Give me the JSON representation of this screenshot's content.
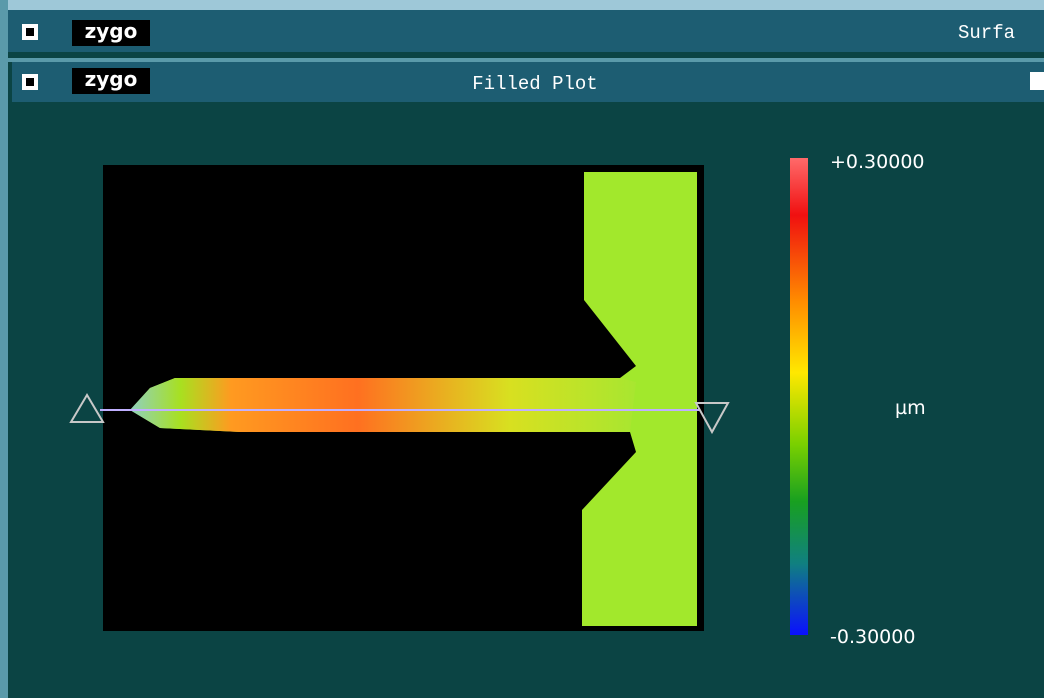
{
  "outer_window": {
    "logo": "zygo",
    "title": "Surfa"
  },
  "inner_window": {
    "logo": "zygo",
    "title": "Filled Plot"
  },
  "color_scale": {
    "max_label": "+0.30000",
    "min_label": "-0.30000",
    "unit": "µm"
  }
}
